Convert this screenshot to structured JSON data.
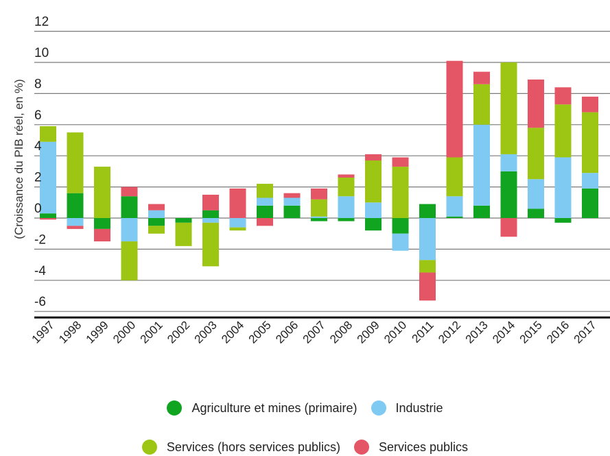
{
  "chart_data": {
    "type": "bar",
    "stacked": true,
    "title": "",
    "xlabel": "",
    "ylabel": "(Croissance du PIB réel, en %)",
    "ylim": [
      -6,
      12
    ],
    "yticks": [
      "12",
      "10",
      "8",
      "6",
      "4",
      "2",
      "0",
      "-2",
      "-4",
      "-6"
    ],
    "grid": true,
    "legend_position": "bottom",
    "categories": [
      "1997",
      "1998",
      "1999",
      "2000",
      "2001",
      "2002",
      "2003",
      "2004",
      "2005",
      "2006",
      "2007",
      "2008",
      "2009",
      "2010",
      "2011",
      "2012",
      "2013",
      "2014",
      "2015",
      "2016",
      "2017"
    ],
    "series": [
      {
        "name": "Agriculture et mines (primaire)",
        "color": "#11a421",
        "values": [
          0.3,
          1.6,
          -0.7,
          1.4,
          -0.5,
          -0.3,
          0.5,
          0.0,
          0.8,
          0.8,
          -0.2,
          -0.2,
          -0.8,
          -1.0,
          0.9,
          0.1,
          0.8,
          3.0,
          0.6,
          -0.3,
          1.9
        ]
      },
      {
        "name": "Industrie",
        "color": "#7fcaf2",
        "values": [
          4.6,
          -0.5,
          0.0,
          -1.5,
          0.5,
          0.0,
          -0.3,
          -0.6,
          0.5,
          0.5,
          0.1,
          1.4,
          1.0,
          -1.1,
          -2.7,
          1.3,
          5.2,
          1.1,
          1.9,
          3.9,
          1.0
        ]
      },
      {
        "name": "Services (hors services publics)",
        "color": "#9cc514",
        "values": [
          1.0,
          3.9,
          3.3,
          -2.5,
          -0.5,
          -1.5,
          -2.8,
          -0.2,
          0.9,
          0.0,
          1.1,
          1.2,
          2.7,
          3.3,
          -0.8,
          2.5,
          2.6,
          5.9,
          3.3,
          3.4,
          3.9
        ]
      },
      {
        "name": "Services publics",
        "color": "#e45565",
        "values": [
          -0.1,
          -0.2,
          -0.8,
          0.6,
          0.4,
          0.0,
          1.0,
          1.9,
          -0.5,
          0.3,
          0.7,
          0.2,
          0.4,
          0.6,
          -1.8,
          6.2,
          0.8,
          -1.2,
          3.1,
          1.1,
          1.0
        ]
      }
    ]
  }
}
